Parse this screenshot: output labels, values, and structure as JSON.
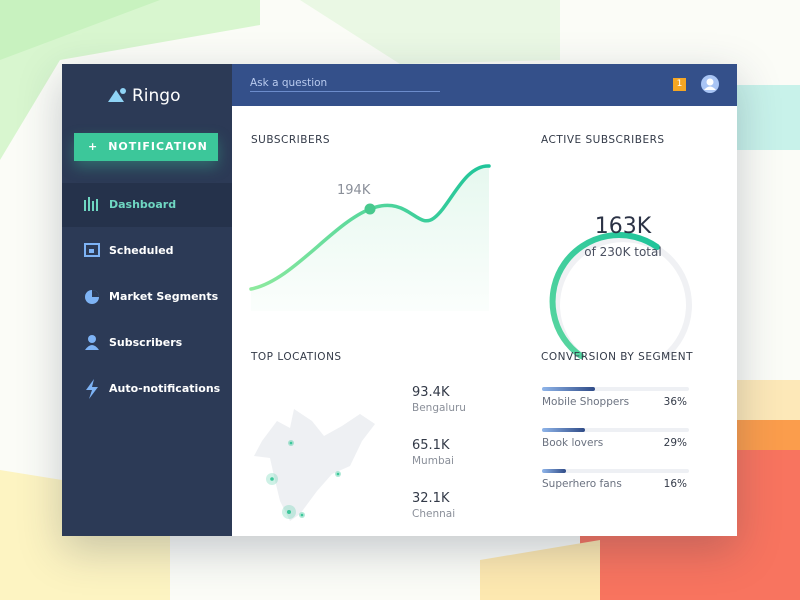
{
  "brand": "Ringo",
  "sidebar": {
    "button": "NOTIFICATION",
    "items": [
      "Dashboard",
      "Scheduled",
      "Market Segments",
      "Subscribers",
      "Auto-notifications"
    ]
  },
  "topbar": {
    "search_placeholder": "Ask a question",
    "badge": "1"
  },
  "subscribers": {
    "title": "SUBSCRIBERS",
    "annotation": "194K"
  },
  "active_subscribers": {
    "title": "ACTIVE SUBSCRIBERS",
    "value": "163K",
    "caption": "of 230K total"
  },
  "top_locations": {
    "title": "TOP LOCATIONS",
    "rows": [
      {
        "value": "93.4K",
        "city": "Bengaluru"
      },
      {
        "value": "65.1K",
        "city": "Mumbai"
      },
      {
        "value": "32.1K",
        "city": "Chennai"
      }
    ]
  },
  "conversion": {
    "title": "CONVERSION BY SEGMENT",
    "segments": [
      {
        "name": "Mobile Shoppers",
        "value": 36,
        "value_label": "36%"
      },
      {
        "name": "Book lovers",
        "value": 29,
        "value_label": "29%"
      },
      {
        "name": "Superhero fans",
        "value": 16,
        "value_label": "16%"
      }
    ]
  }
}
